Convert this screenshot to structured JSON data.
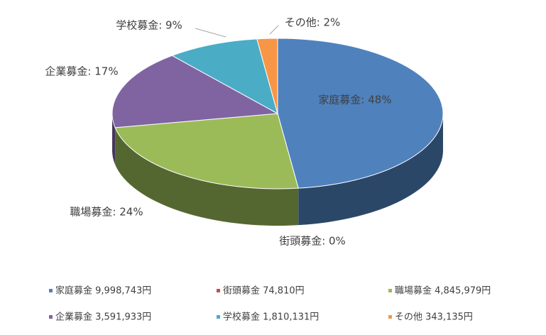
{
  "chart_data": {
    "type": "pie3d",
    "categories": [
      "家庭募金",
      "街頭募金",
      "職場募金",
      "企業募金",
      "学校募金",
      "その他"
    ],
    "values": [
      48,
      0,
      24,
      17,
      9,
      2
    ],
    "value_labels": [
      "家庭募金: 48%",
      "街頭募金: 0%",
      "職場募金: 24%",
      "企業募金: 17%",
      "学校募金: 9%",
      "その他: 2%"
    ],
    "legend_labels": [
      "家庭募金 9,998,743円",
      "街頭募金 74,810円",
      "職場募金 4,845,979円",
      "企業募金 3,591,933円",
      "学校募金 1,810,131円",
      "その他 343,135円"
    ],
    "colors": [
      "#4f81bd",
      "#c0504d",
      "#9bbb59",
      "#8064a2",
      "#4bacc6",
      "#f79646"
    ],
    "legend": "bottom"
  }
}
